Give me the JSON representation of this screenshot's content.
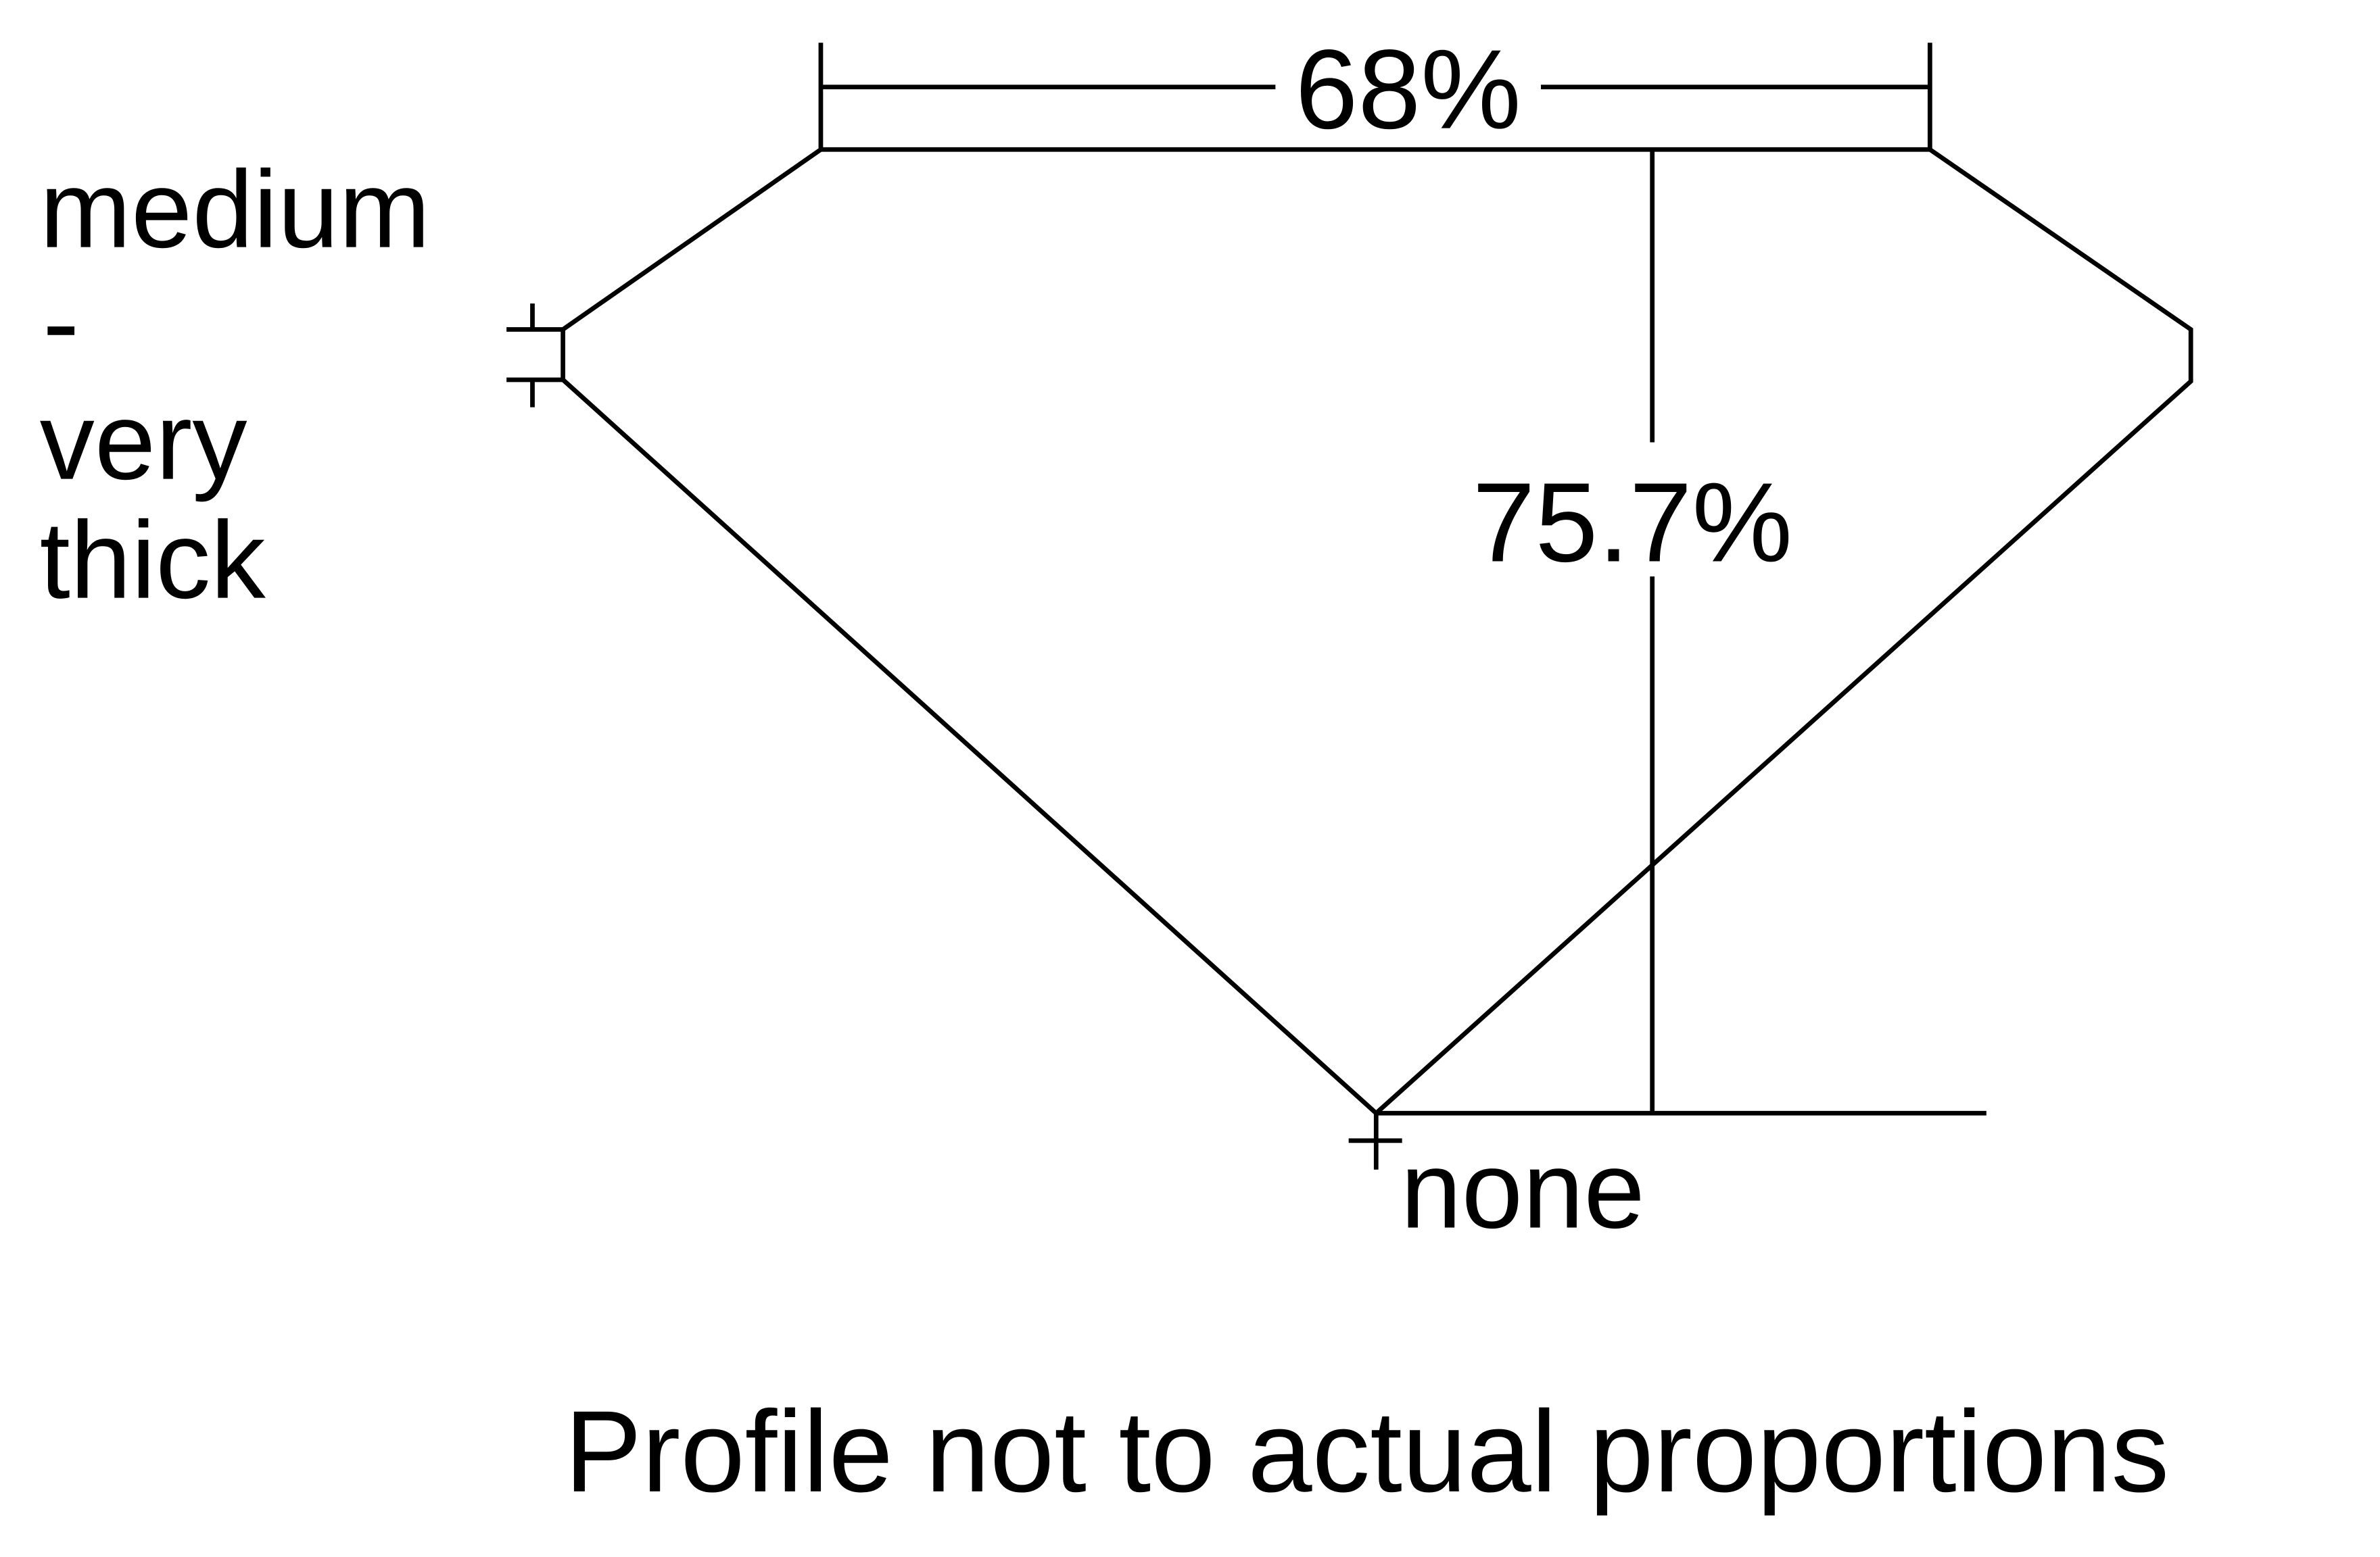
{
  "diagram": {
    "table_percentage": "68%",
    "total_depth_percentage": "75.7%",
    "girdle_thickness": [
      "medium",
      "-",
      "very",
      "thick"
    ],
    "culet": "none",
    "note": "Profile not to actual proportions"
  },
  "colors": {
    "line": "#000000",
    "background": "#ffffff"
  }
}
